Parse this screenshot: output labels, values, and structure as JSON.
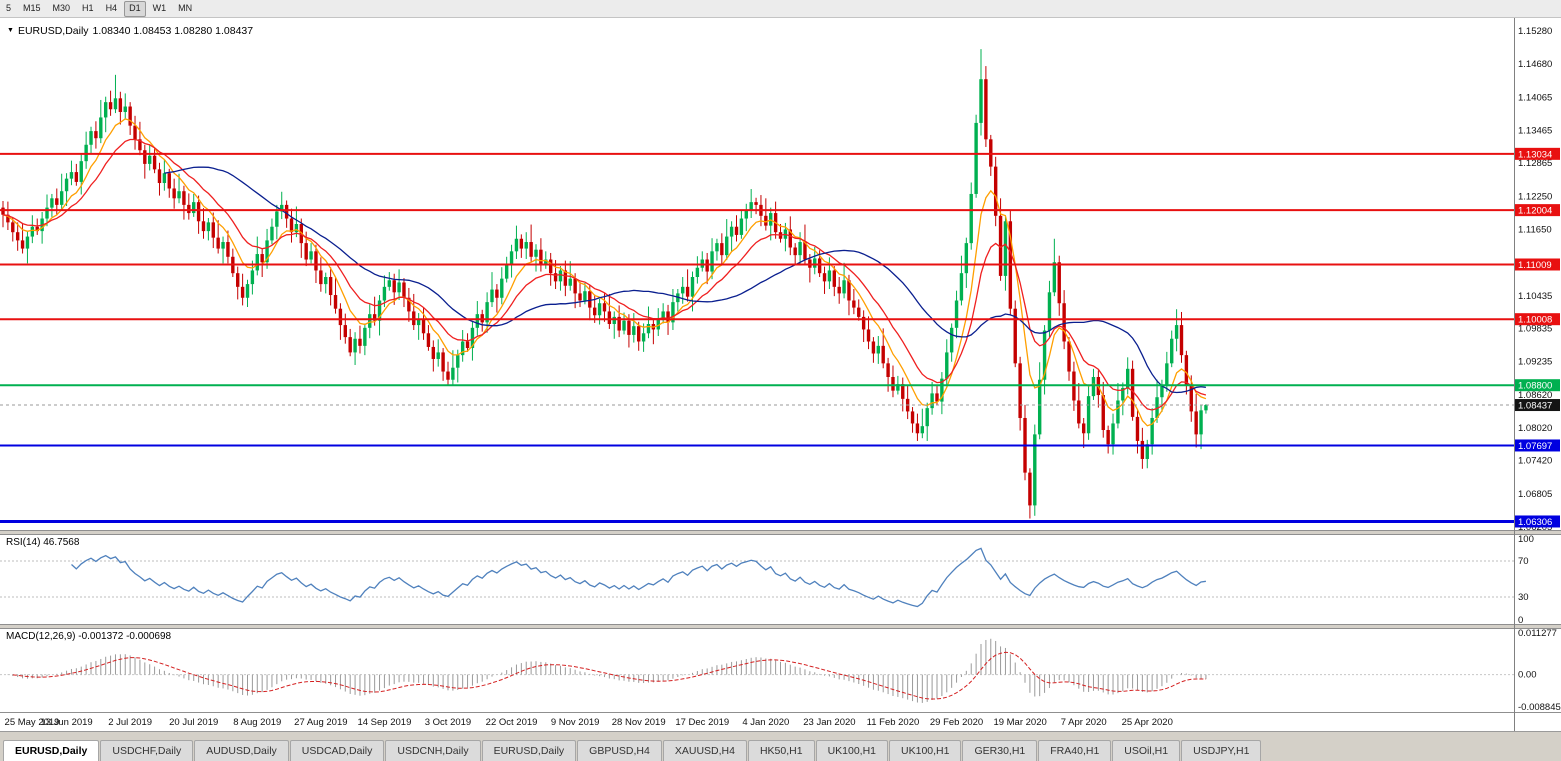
{
  "toolbar": {
    "timeframes": [
      "5",
      "M15",
      "M30",
      "H1",
      "H4",
      "D1",
      "W1",
      "MN"
    ],
    "active": "D1"
  },
  "chart_header": {
    "title": "EURUSD,Daily",
    "ohlc": "1.08340 1.08453 1.08280 1.08437"
  },
  "chart_data": {
    "type": "candlestick",
    "symbol": "EURUSD",
    "timeframe": "Daily",
    "first_open": 1.1205,
    "opens_follow_previous_close": true,
    "closes": [
      1.1192,
      1.1178,
      1.116,
      1.1145,
      1.113,
      1.1152,
      1.117,
      1.1162,
      1.1185,
      1.1205,
      1.1222,
      1.121,
      1.1235,
      1.1258,
      1.127,
      1.1252,
      1.129,
      1.132,
      1.1345,
      1.1332,
      1.137,
      1.1398,
      1.1385,
      1.1405,
      1.138,
      1.139,
      1.1355,
      1.133,
      1.131,
      1.1285,
      1.13,
      1.1275,
      1.125,
      1.1268,
      1.124,
      1.1222,
      1.1235,
      1.121,
      1.1195,
      1.1215,
      1.118,
      1.1162,
      1.1178,
      1.115,
      1.113,
      1.1142,
      1.1115,
      1.1085,
      1.106,
      1.104,
      1.1065,
      1.109,
      1.112,
      1.1105,
      1.1145,
      1.117,
      1.1198,
      1.121,
      1.1185,
      1.116,
      1.1175,
      1.114,
      1.111,
      1.1125,
      1.109,
      1.1065,
      1.1078,
      1.1045,
      1.102,
      1.099,
      1.0968,
      1.094,
      1.0965,
      1.0952,
      1.0985,
      1.101,
      1.0998,
      1.1035,
      1.106,
      1.1072,
      1.105,
      1.1068,
      1.104,
      1.1015,
      1.099,
      1.1002,
      1.0975,
      1.095,
      1.0928,
      1.094,
      1.0905,
      1.089,
      1.0912,
      1.0935,
      1.096,
      1.0948,
      1.0985,
      1.101,
      1.0995,
      1.1032,
      1.1055,
      1.104,
      1.1075,
      1.11,
      1.1125,
      1.1148,
      1.113,
      1.1142,
      1.1115,
      1.1128,
      1.11,
      1.111,
      1.1085,
      1.107,
      1.109,
      1.1062,
      1.1075,
      1.1048,
      1.1035,
      1.1052,
      1.1022,
      1.1008,
      1.103,
      1.1015,
      1.0992,
      1.1005,
      1.098,
      1.0998,
      1.0972,
      1.0988,
      1.096,
      1.0975,
      1.0992,
      1.0982,
      1.1,
      1.1015,
      1.0995,
      1.1032,
      1.1048,
      1.106,
      1.1042,
      1.1078,
      1.1095,
      1.111,
      1.1088,
      1.1125,
      1.114,
      1.1118,
      1.1152,
      1.117,
      1.1155,
      1.1185,
      1.12,
      1.1215,
      1.121,
      1.119,
      1.1172,
      1.1195,
      1.116,
      1.1148,
      1.1165,
      1.1132,
      1.1118,
      1.1142,
      1.111,
      1.1095,
      1.1112,
      1.1085,
      1.107,
      1.109,
      1.106,
      1.1048,
      1.1072,
      1.1035,
      1.1022,
      1.1005,
      1.0982,
      1.096,
      1.0938,
      1.0952,
      1.092,
      1.0895,
      1.087,
      1.0882,
      1.0855,
      1.0832,
      1.081,
      1.0792,
      1.0805,
      1.0838,
      1.0865,
      1.085,
      1.0892,
      1.094,
      1.0985,
      1.1035,
      1.1085,
      1.114,
      1.123,
      1.136,
      1.144,
      1.133,
      1.128,
      1.119,
      1.108,
      1.118,
      1.102,
      1.092,
      1.082,
      1.072,
      1.066,
      1.079,
      1.089,
      1.098,
      1.105,
      1.1105,
      1.103,
      1.096,
      1.0905,
      1.0852,
      1.081,
      1.0792,
      1.086,
      1.0895,
      1.0862,
      1.0798,
      1.0772,
      1.081,
      1.0852,
      1.0875,
      1.091,
      1.0822,
      1.0778,
      1.0745,
      1.0772,
      1.082,
      1.0858,
      1.088,
      1.092,
      1.0965,
      1.099,
      1.0935,
      1.088,
      1.0832,
      1.079,
      1.0834,
      1.08437
    ],
    "wick_up_pattern": [
      0.0012,
      0.0024,
      0.0008,
      0.0018,
      0.0032,
      0.001,
      0.0021,
      0.0015
    ],
    "wick_down_pattern": [
      0.0019,
      0.0009,
      0.0027,
      0.0012,
      0.0007,
      0.0023,
      0.0014,
      0.0017
    ],
    "wick_overrides": {
      "23": {
        "hi": 1.1448
      },
      "91": {
        "lo": 1.0879
      },
      "187": {
        "lo": 1.0778
      },
      "200": {
        "hi": 1.1495
      },
      "210": {
        "lo": 1.0636
      },
      "215": {
        "hi": 1.1148
      },
      "233": {
        "lo": 1.0727
      },
      "240": {
        "hi": 1.1019
      },
      "244": {
        "lo": 1.0766
      },
      "246": {
        "hi": 1.08453,
        "lo": 1.0828
      }
    },
    "y_axis": {
      "top_value": 1.1552,
      "bottom_value": 1.0615,
      "labels": [
        "1.15280",
        "1.14680",
        "1.14065",
        "1.13465",
        "1.12865",
        "1.12250",
        "1.11650",
        "1.10435",
        "1.09835",
        "1.09235",
        "1.08620",
        "1.08020",
        "1.07420",
        "1.06805",
        "1.06205"
      ]
    },
    "x_axis_labels": [
      {
        "i": 0,
        "t": "25 May 2019"
      },
      {
        "i": 13,
        "t": "13 Jun 2019"
      },
      {
        "i": 26,
        "t": "2 Jul 2019"
      },
      {
        "i": 39,
        "t": "20 Jul 2019"
      },
      {
        "i": 52,
        "t": "8 Aug 2019"
      },
      {
        "i": 65,
        "t": "27 Aug 2019"
      },
      {
        "i": 78,
        "t": "14 Sep 2019"
      },
      {
        "i": 91,
        "t": "3 Oct 2019"
      },
      {
        "i": 104,
        "t": "22 Oct 2019"
      },
      {
        "i": 117,
        "t": "9 Nov 2019"
      },
      {
        "i": 130,
        "t": "28 Nov 2019"
      },
      {
        "i": 143,
        "t": "17 Dec 2019"
      },
      {
        "i": 156,
        "t": "4 Jan 2020"
      },
      {
        "i": 169,
        "t": "23 Jan 2020"
      },
      {
        "i": 182,
        "t": "11 Feb 2020"
      },
      {
        "i": 195,
        "t": "29 Feb 2020"
      },
      {
        "i": 208,
        "t": "19 Mar 2020"
      },
      {
        "i": 221,
        "t": "7 Apr 2020"
      },
      {
        "i": 234,
        "t": "25 Apr 2020"
      }
    ],
    "hlines": [
      {
        "value": 1.13034,
        "label": "1.13034",
        "color": "#e81010",
        "width": 2
      },
      {
        "value": 1.12004,
        "label": "1.12004",
        "color": "#e81010",
        "width": 2
      },
      {
        "value": 1.11009,
        "label": "1.11009",
        "color": "#e81010",
        "width": 2
      },
      {
        "value": 1.10008,
        "label": "1.10008",
        "color": "#e81010",
        "width": 2
      },
      {
        "value": 1.088,
        "label": "1.08800",
        "color": "#00b050",
        "width": 2
      },
      {
        "value": 1.07697,
        "label": "1.07697",
        "color": "#0000e0",
        "width": 2
      },
      {
        "value": 1.06306,
        "label": "1.06306",
        "color": "#0000e0",
        "width": 3
      }
    ],
    "current_price": {
      "value": 1.08437,
      "label": "1.08437",
      "badge_color": "#141414"
    },
    "moving_averages": [
      {
        "kind": "ema",
        "period": 8,
        "color": "#ff9f00"
      },
      {
        "kind": "ema",
        "period": 16,
        "color": "#ef2020"
      },
      {
        "kind": "sma",
        "period": 34,
        "color": "#0a1f8f"
      }
    ],
    "indicators": [
      {
        "name": "RSI",
        "label": "RSI(14) 46.7568",
        "period": 14,
        "color": "#4f81bd",
        "levels": [
          70,
          30
        ],
        "axis_values": [
          100,
          70,
          30,
          0
        ],
        "axis_labels": [
          "100",
          "70",
          "30",
          "0"
        ],
        "current": 46.7568
      },
      {
        "name": "MACD",
        "label": "MACD(12,26,9) -0.001372 -0.000698",
        "fast": 12,
        "slow": 26,
        "signal": 9,
        "hist_color": "#9a9a9a",
        "signal_color": "#d42020",
        "axis_values": [
          0.011277,
          0,
          -0.008845
        ],
        "axis_labels": [
          "0.011277",
          "0.00",
          "-0.008845"
        ],
        "range": [
          -0.00985,
          0.01228
        ],
        "current_macd": -0.001372,
        "current_signal": -0.000698
      }
    ],
    "colors": {
      "up": "#00b050",
      "down": "#c40000"
    }
  },
  "bottom_tabs": {
    "tabs": [
      {
        "label": "EURUSD,Daily",
        "active": true
      },
      {
        "label": "USDCHF,Daily"
      },
      {
        "label": "AUDUSD,Daily"
      },
      {
        "label": "USDCAD,Daily"
      },
      {
        "label": "USDCNH,Daily"
      },
      {
        "label": "EURUSD,Daily"
      },
      {
        "label": "GBPUSD,H4"
      },
      {
        "label": "XAUUSD,H4"
      },
      {
        "label": "HK50,H1"
      },
      {
        "label": "UK100,H1"
      },
      {
        "label": "UK100,H1"
      },
      {
        "label": "GER30,H1"
      },
      {
        "label": "FRA40,H1"
      },
      {
        "label": "USOil,H1"
      },
      {
        "label": "USDJPY,H1"
      }
    ]
  }
}
